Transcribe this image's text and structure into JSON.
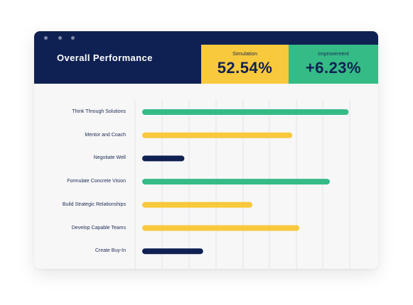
{
  "header": {
    "title": "Overall Performance",
    "stats": [
      {
        "label": "Simulation",
        "value": "52.54%",
        "color": "#f8c93c"
      },
      {
        "label": "Improvement",
        "value": "+6.23%",
        "color": "#35bb86"
      }
    ]
  },
  "colors": {
    "navy": "#0f2152",
    "green": "#35bb86",
    "yellow": "#f8c93c",
    "panel": "#f7f7f8",
    "gridline": "#e3e4e8"
  },
  "chart_data": {
    "type": "bar",
    "orientation": "horizontal",
    "categories": [
      "Think Through Solutions",
      "Mentor and Coach",
      "Negotiate Well",
      "Formulate Concrete Vision",
      "Build Strategic Relationships",
      "Develop Capable Teams",
      "Create Buy-In"
    ],
    "values": [
      88,
      64,
      18,
      80,
      47,
      67,
      26
    ],
    "bar_colors": [
      "green",
      "yellow",
      "navy",
      "green",
      "yellow",
      "yellow",
      "navy"
    ],
    "xlim": [
      0,
      100
    ],
    "grid": true
  }
}
